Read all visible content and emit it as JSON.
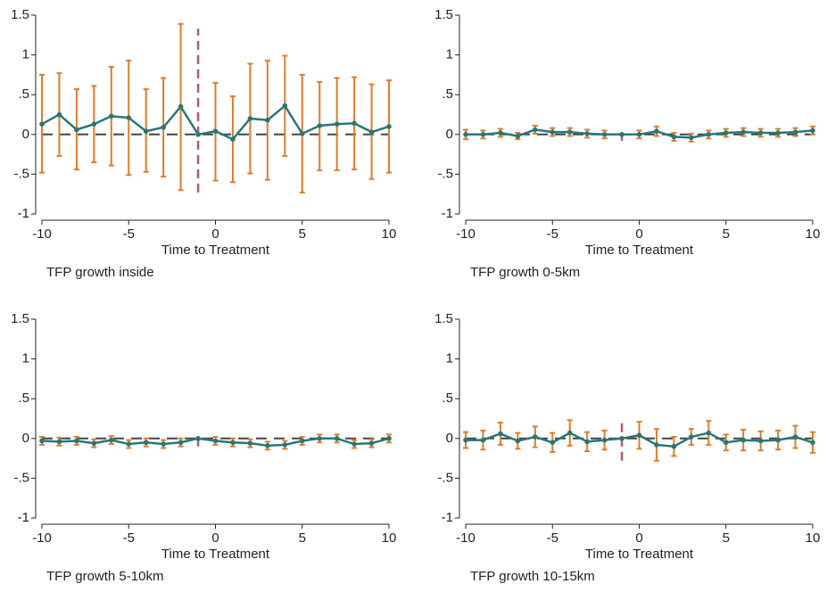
{
  "chart_data": [
    {
      "type": "line",
      "caption": "TFP growth inside",
      "xlabel": "Time to Treatment",
      "x": [
        -10,
        -9,
        -8,
        -7,
        -6,
        -5,
        -4,
        -3,
        -2,
        -1,
        0,
        1,
        2,
        3,
        4,
        5,
        6,
        7,
        8,
        9,
        10
      ],
      "values": [
        0.13,
        0.25,
        0.06,
        0.13,
        0.23,
        0.21,
        0.04,
        0.09,
        0.35,
        0,
        0.04,
        -0.06,
        0.2,
        0.18,
        0.36,
        0.01,
        0.11,
        0.13,
        0.14,
        0.03,
        0.1
      ],
      "lower": [
        -0.48,
        -0.27,
        -0.44,
        -0.35,
        -0.39,
        -0.51,
        -0.47,
        -0.53,
        -0.7,
        null,
        -0.58,
        -0.6,
        -0.49,
        -0.57,
        -0.27,
        -0.73,
        -0.45,
        -0.45,
        -0.44,
        -0.56,
        -0.48
      ],
      "upper": [
        0.75,
        0.77,
        0.57,
        0.61,
        0.85,
        0.93,
        0.57,
        0.71,
        1.39,
        null,
        0.65,
        0.48,
        0.89,
        0.93,
        0.99,
        0.75,
        0.66,
        0.71,
        0.72,
        0.63,
        0.68
      ],
      "hline": 0,
      "vline": {
        "x": -1,
        "y": [
          -0.73,
          1.33
        ]
      },
      "line_color": "#2a7775",
      "ci_color": "#e07b2a",
      "vline_color": "#b35a6e",
      "xlim": [
        -10,
        10
      ],
      "xticks": [
        -10,
        -5,
        0,
        5,
        10
      ],
      "ylim": [
        -1,
        1.5
      ],
      "yticks": [
        -1,
        {
          "value": -0.5,
          "label": "-.5"
        },
        0,
        {
          "value": 0.5,
          "label": ".5"
        },
        1,
        1.5
      ]
    },
    {
      "type": "line",
      "caption": "TFP growth 0-5km",
      "xlabel": "Time to Treatment",
      "x": [
        -10,
        -9,
        -8,
        -7,
        -6,
        -5,
        -4,
        -3,
        -2,
        -1,
        0,
        1,
        2,
        3,
        4,
        5,
        6,
        7,
        8,
        9,
        10
      ],
      "values": [
        0,
        0,
        0.02,
        -0.02,
        0.06,
        0.03,
        0.03,
        0.01,
        0,
        0,
        0,
        0.04,
        -0.03,
        -0.04,
        0,
        0.02,
        0.03,
        0.02,
        0.02,
        0.03,
        0.05
      ],
      "lower": [
        -0.06,
        -0.05,
        -0.03,
        -0.06,
        0.01,
        -0.02,
        -0.02,
        -0.04,
        -0.05,
        null,
        -0.05,
        -0.02,
        -0.08,
        -0.09,
        -0.05,
        -0.03,
        -0.02,
        -0.03,
        -0.03,
        -0.02,
        0
      ],
      "upper": [
        0.06,
        0.05,
        0.07,
        0.02,
        0.11,
        0.08,
        0.08,
        0.06,
        0.05,
        null,
        0.05,
        0.1,
        0.02,
        0.01,
        0.05,
        0.07,
        0.08,
        0.07,
        0.07,
        0.08,
        0.1
      ],
      "hline": 0,
      "vline": {
        "x": -1,
        "y": [
          -0.08,
          0.03
        ]
      },
      "line_color": "#2a7775",
      "ci_color": "#e07b2a",
      "vline_color": "#b35a6e",
      "xlim": [
        -10,
        10
      ],
      "xticks": [
        -10,
        -5,
        0,
        5,
        10
      ],
      "ylim": [
        -1,
        1.5
      ],
      "yticks": [
        -1,
        {
          "value": -0.5,
          "label": "-.5"
        },
        0,
        {
          "value": 0.5,
          "label": ".5"
        },
        1,
        1.5
      ]
    },
    {
      "type": "line",
      "caption": "TFP growth 5-10km",
      "xlabel": "Time to Treatment",
      "x": [
        -10,
        -9,
        -8,
        -7,
        -6,
        -5,
        -4,
        -3,
        -2,
        -1,
        0,
        1,
        2,
        3,
        4,
        5,
        6,
        7,
        8,
        9,
        10
      ],
      "values": [
        -0.03,
        -0.04,
        -0.03,
        -0.06,
        -0.02,
        -0.07,
        -0.05,
        -0.07,
        -0.05,
        0,
        -0.03,
        -0.05,
        -0.06,
        -0.09,
        -0.08,
        -0.03,
        0,
        0,
        -0.07,
        -0.06,
        0
      ],
      "lower": [
        -0.08,
        -0.09,
        -0.08,
        -0.11,
        -0.07,
        -0.12,
        -0.1,
        -0.12,
        -0.1,
        null,
        -0.08,
        -0.1,
        -0.11,
        -0.14,
        -0.13,
        -0.08,
        -0.05,
        -0.05,
        -0.12,
        -0.11,
        -0.05
      ],
      "upper": [
        0.02,
        0.01,
        0.02,
        -0.01,
        0.03,
        -0.02,
        0,
        -0.02,
        0,
        null,
        0.02,
        0,
        -0.01,
        -0.04,
        -0.03,
        0.02,
        0.05,
        0.05,
        -0.02,
        -0.01,
        0.05
      ],
      "hline": 0,
      "vline": {
        "x": -1,
        "y": [
          -0.1,
          0.02
        ]
      },
      "line_color": "#2a7775",
      "ci_color": "#e07b2a",
      "vline_color": "#b35a6e",
      "xlim": [
        -10,
        10
      ],
      "xticks": [
        -10,
        -5,
        0,
        5,
        10
      ],
      "ylim": [
        -1,
        1.5
      ],
      "yticks": [
        -1,
        {
          "value": -0.5,
          "label": "-.5"
        },
        0,
        {
          "value": 0.5,
          "label": ".5"
        },
        1,
        1.5
      ]
    },
    {
      "type": "line",
      "caption": "TFP growth 10-15km",
      "xlabel": "Time to Treatment",
      "x": [
        -10,
        -9,
        -8,
        -7,
        -6,
        -5,
        -4,
        -3,
        -2,
        -1,
        0,
        1,
        2,
        3,
        4,
        5,
        6,
        7,
        8,
        9,
        10
      ],
      "values": [
        -0.02,
        -0.02,
        0.06,
        -0.03,
        0.02,
        -0.05,
        0.07,
        -0.04,
        -0.02,
        0,
        0.04,
        -0.08,
        -0.1,
        0.02,
        0.07,
        -0.05,
        -0.02,
        -0.03,
        -0.02,
        0.02,
        -0.05
      ],
      "lower": [
        -0.12,
        -0.14,
        -0.08,
        -0.13,
        -0.11,
        -0.17,
        -0.09,
        -0.16,
        -0.14,
        null,
        -0.13,
        -0.28,
        -0.22,
        -0.08,
        -0.08,
        -0.15,
        -0.15,
        -0.15,
        -0.14,
        -0.12,
        -0.18
      ],
      "upper": [
        0.08,
        0.1,
        0.2,
        0.07,
        0.15,
        0.07,
        0.23,
        0.08,
        0.1,
        null,
        0.21,
        0.12,
        0.02,
        0.12,
        0.22,
        0.05,
        0.11,
        0.09,
        0.1,
        0.16,
        0.08
      ],
      "hline": 0,
      "vline": {
        "x": -1,
        "y": [
          -0.28,
          0.22
        ]
      },
      "line_color": "#2a7775",
      "ci_color": "#e07b2a",
      "vline_color": "#b35a6e",
      "xlim": [
        -10,
        10
      ],
      "xticks": [
        -10,
        -5,
        0,
        5,
        10
      ],
      "ylim": [
        -1,
        1.5
      ],
      "yticks": [
        -1,
        {
          "value": -0.5,
          "label": "-.5"
        },
        0,
        {
          "value": 0.5,
          "label": ".5"
        },
        1,
        1.5
      ]
    }
  ]
}
